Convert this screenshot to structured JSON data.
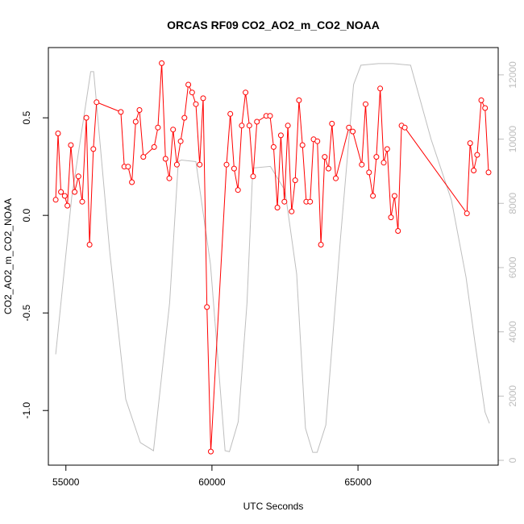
{
  "chart_data": {
    "type": "line",
    "title": "ORCAS RF09 CO2_AO2_m_CO2_NOAA",
    "xlabel": "UTC Seconds",
    "ylabel": "CO2_AO2_m_CO2_NOAA",
    "xlim": [
      54400,
      69800
    ],
    "ylim": [
      -1.28,
      0.86
    ],
    "y2lim": [
      -150,
      12850
    ],
    "x_ticks": [
      55000,
      60000,
      65000
    ],
    "y_ticks": [
      -1.0,
      -0.5,
      0.0,
      0.5
    ],
    "y2_ticks": [
      0,
      2000,
      4000,
      6000,
      8000,
      10000,
      12000
    ],
    "colors": {
      "primary": "#ff0000",
      "secondary": "#bebebe",
      "axes": "#000000"
    },
    "series": [
      {
        "role": "primary",
        "points": [
          [
            54650,
            0.08
          ],
          [
            54730,
            0.42
          ],
          [
            54830,
            0.12
          ],
          [
            54960,
            0.1
          ],
          [
            55050,
            0.05
          ],
          [
            55170,
            0.36
          ],
          [
            55300,
            0.12
          ],
          [
            55430,
            0.2
          ],
          [
            55560,
            0.07
          ],
          [
            55700,
            0.5
          ],
          [
            55810,
            -0.15
          ],
          [
            55940,
            0.34
          ],
          [
            56050,
            0.58
          ],
          [
            56880,
            0.53
          ],
          [
            57000,
            0.25
          ],
          [
            57130,
            0.25
          ],
          [
            57260,
            0.17
          ],
          [
            57390,
            0.48
          ],
          [
            57520,
            0.54
          ],
          [
            57650,
            0.3
          ],
          [
            58020,
            0.35
          ],
          [
            58150,
            0.45
          ],
          [
            58280,
            0.78
          ],
          [
            58410,
            0.29
          ],
          [
            58540,
            0.19
          ],
          [
            58670,
            0.44
          ],
          [
            58800,
            0.26
          ],
          [
            58930,
            0.38
          ],
          [
            59060,
            0.5
          ],
          [
            59190,
            0.67
          ],
          [
            59320,
            0.63
          ],
          [
            59450,
            0.57
          ],
          [
            59580,
            0.26
          ],
          [
            59700,
            0.6
          ],
          [
            59830,
            -0.47
          ],
          [
            59960,
            -1.21
          ],
          [
            60500,
            0.26
          ],
          [
            60630,
            0.52
          ],
          [
            60760,
            0.24
          ],
          [
            60890,
            0.13
          ],
          [
            61020,
            0.46
          ],
          [
            61150,
            0.63
          ],
          [
            61280,
            0.46
          ],
          [
            61410,
            0.2
          ],
          [
            61540,
            0.48
          ],
          [
            61860,
            0.51
          ],
          [
            61990,
            0.51
          ],
          [
            62110,
            0.35
          ],
          [
            62240,
            0.04
          ],
          [
            62360,
            0.41
          ],
          [
            62480,
            0.07
          ],
          [
            62600,
            0.46
          ],
          [
            62730,
            0.02
          ],
          [
            62850,
            0.18
          ],
          [
            62980,
            0.59
          ],
          [
            63100,
            0.36
          ],
          [
            63230,
            0.07
          ],
          [
            63360,
            0.07
          ],
          [
            63480,
            0.39
          ],
          [
            63610,
            0.38
          ],
          [
            63730,
            -0.15
          ],
          [
            63860,
            0.3
          ],
          [
            63990,
            0.24
          ],
          [
            64110,
            0.47
          ],
          [
            64240,
            0.19
          ],
          [
            64690,
            0.45
          ],
          [
            64820,
            0.43
          ],
          [
            65130,
            0.26
          ],
          [
            65260,
            0.57
          ],
          [
            65380,
            0.22
          ],
          [
            65510,
            0.1
          ],
          [
            65630,
            0.3
          ],
          [
            65760,
            0.65
          ],
          [
            65880,
            0.27
          ],
          [
            66000,
            0.34
          ],
          [
            66130,
            -0.01
          ],
          [
            66250,
            0.1
          ],
          [
            66370,
            -0.08
          ],
          [
            66490,
            0.46
          ],
          [
            66600,
            0.45
          ],
          [
            68730,
            0.01
          ],
          [
            68840,
            0.37
          ],
          [
            68960,
            0.23
          ],
          [
            69080,
            0.31
          ],
          [
            69220,
            0.59
          ],
          [
            69350,
            0.55
          ],
          [
            69470,
            0.22
          ]
        ]
      },
      {
        "role": "secondary",
        "points": [
          [
            54650,
            3300
          ],
          [
            55200,
            8200
          ],
          [
            55850,
            12100
          ],
          [
            55950,
            12100
          ],
          [
            56500,
            6500
          ],
          [
            57050,
            1900
          ],
          [
            57550,
            550
          ],
          [
            58000,
            300
          ],
          [
            58550,
            4900
          ],
          [
            58850,
            9300
          ],
          [
            58950,
            9350
          ],
          [
            59450,
            9300
          ],
          [
            59950,
            6100
          ],
          [
            60450,
            300
          ],
          [
            60600,
            270
          ],
          [
            60900,
            1200
          ],
          [
            61200,
            4900
          ],
          [
            61400,
            9100
          ],
          [
            62000,
            9150
          ],
          [
            62500,
            8400
          ],
          [
            62900,
            5800
          ],
          [
            63200,
            1000
          ],
          [
            63450,
            250
          ],
          [
            63600,
            250
          ],
          [
            63900,
            1100
          ],
          [
            64400,
            6900
          ],
          [
            64850,
            11700
          ],
          [
            65100,
            12300
          ],
          [
            65700,
            12350
          ],
          [
            66200,
            12350
          ],
          [
            66800,
            12300
          ],
          [
            67500,
            10000
          ],
          [
            68200,
            8100
          ],
          [
            68700,
            5700
          ],
          [
            69000,
            3700
          ],
          [
            69350,
            1500
          ],
          [
            69500,
            1150
          ]
        ]
      }
    ]
  }
}
